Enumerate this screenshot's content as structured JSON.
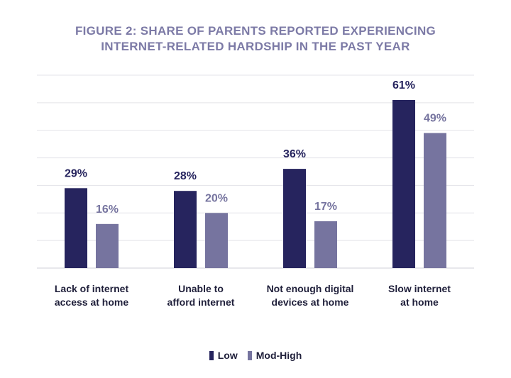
{
  "chart_data": {
    "type": "bar",
    "title_line1": "FIGURE 2: SHARE OF PARENTS REPORTED EXPERIENCING",
    "title_line2": "INTERNET-RELATED HARDSHIP IN THE PAST YEAR",
    "categories": [
      [
        "Lack of internet",
        "access at home"
      ],
      [
        "Unable to",
        "afford internet"
      ],
      [
        "Not enough digital",
        "devices at home"
      ],
      [
        "Slow internet",
        "at home"
      ]
    ],
    "series": [
      {
        "name": "Low",
        "values": [
          29,
          28,
          36,
          61
        ],
        "labels": [
          "29%",
          "28%",
          "36%",
          "61%"
        ],
        "color": "#26245e"
      },
      {
        "name": "Mod-High",
        "values": [
          16,
          20,
          17,
          49
        ],
        "labels": [
          "16%",
          "20%",
          "17%",
          "49%"
        ],
        "color": "#76749f"
      }
    ],
    "ylim": [
      0,
      70
    ],
    "grid": true,
    "legend_position": "bottom"
  }
}
